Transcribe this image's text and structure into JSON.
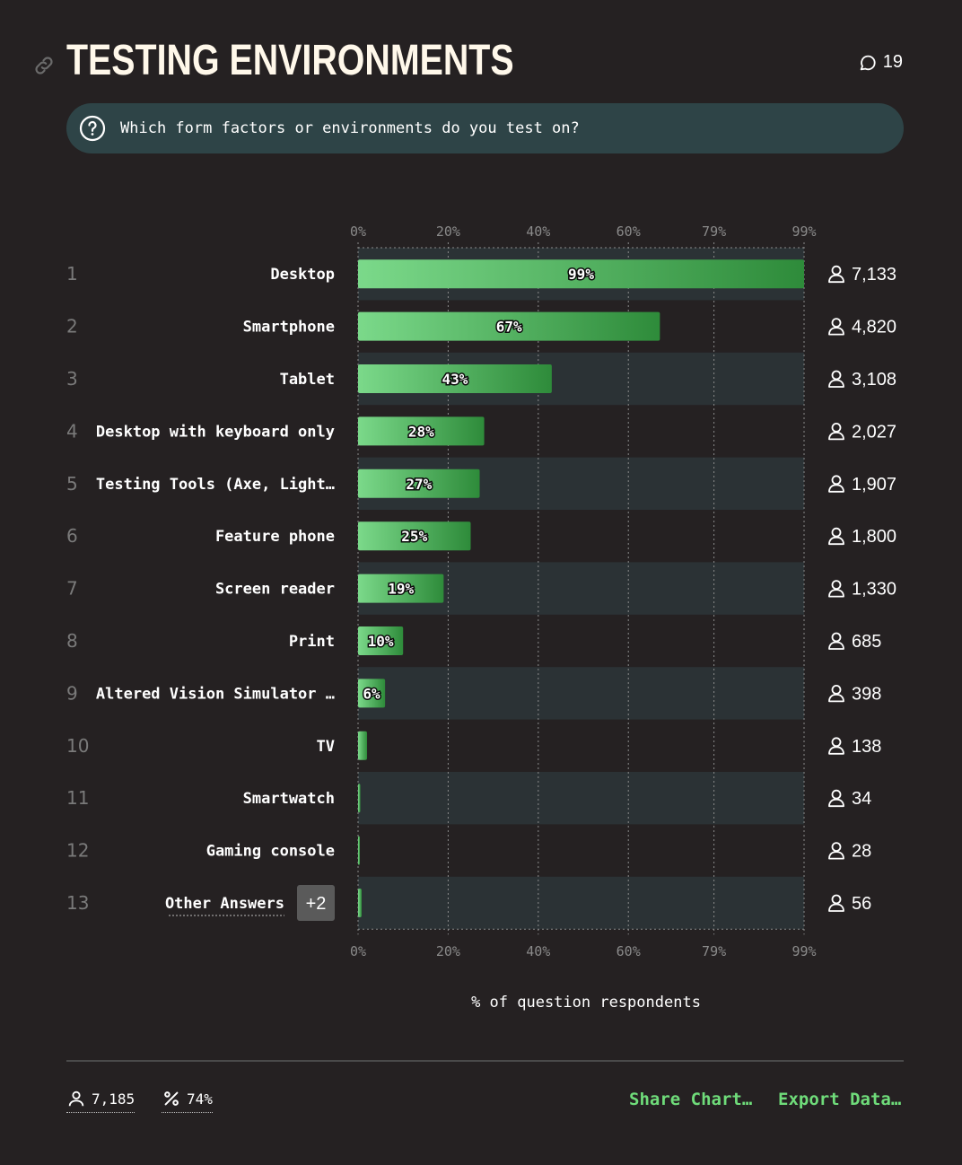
{
  "header": {
    "title": "TESTING ENVIRONMENTS",
    "comment_count": "19",
    "icons": [
      "link-icon",
      "comment-icon"
    ]
  },
  "question": {
    "text": "Which form factors or environments do you test on?",
    "icon": "question-icon"
  },
  "chart_data": {
    "type": "bar",
    "orientation": "horizontal",
    "xlabel": "% of question respondents",
    "x_ticks": [
      "0%",
      "20%",
      "40%",
      "60%",
      "79%",
      "99%"
    ],
    "xlim": [
      0,
      99
    ],
    "grid": true,
    "rows": [
      {
        "rank": "1",
        "label": "Desktop",
        "value": 99,
        "value_label": "99%",
        "count": "7,133"
      },
      {
        "rank": "2",
        "label": "Smartphone",
        "value": 67,
        "value_label": "67%",
        "count": "4,820"
      },
      {
        "rank": "3",
        "label": "Tablet",
        "value": 43,
        "value_label": "43%",
        "count": "3,108"
      },
      {
        "rank": "4",
        "label": "Desktop with keyboard only",
        "value": 28,
        "value_label": "28%",
        "count": "2,027"
      },
      {
        "rank": "5",
        "label": "Testing Tools (Axe, Light…",
        "value": 27,
        "value_label": "27%",
        "count": "1,907"
      },
      {
        "rank": "6",
        "label": "Feature phone",
        "value": 25,
        "value_label": "25%",
        "count": "1,800"
      },
      {
        "rank": "7",
        "label": "Screen reader",
        "value": 19,
        "value_label": "19%",
        "count": "1,330"
      },
      {
        "rank": "8",
        "label": "Print",
        "value": 10,
        "value_label": "10%",
        "count": "685"
      },
      {
        "rank": "9",
        "label": "Altered Vision Simulator …",
        "value": 6,
        "value_label": "6%",
        "count": "398"
      },
      {
        "rank": "10",
        "label": "TV",
        "value": 2,
        "value_label": "",
        "count": "138"
      },
      {
        "rank": "11",
        "label": "Smartwatch",
        "value": 0.5,
        "value_label": "",
        "count": "34"
      },
      {
        "rank": "12",
        "label": "Gaming console",
        "value": 0.4,
        "value_label": "",
        "count": "28"
      },
      {
        "rank": "13",
        "label": "Other Answers",
        "value": 0.8,
        "value_label": "",
        "count": "56",
        "badge": "+2"
      }
    ],
    "colors": {
      "bar_start": "#7bd98a",
      "bar_end": "#2e8b3a",
      "band": "#2b3235",
      "grid": "#8a8a8a"
    }
  },
  "footer": {
    "respondents": "7,185",
    "percent": "74%",
    "share_label": "Share Chart…",
    "export_label": "Export Data…",
    "accent": "#6fdc7a"
  }
}
